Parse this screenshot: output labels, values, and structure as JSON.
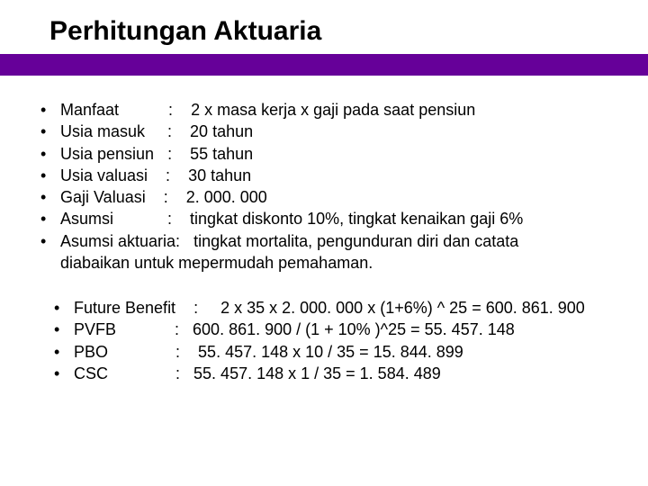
{
  "colors": {
    "bar": "#660099",
    "background": "#ffffff",
    "text": "#000000"
  },
  "title": "Perhitungan Aktuaria",
  "list1": {
    "items": [
      {
        "label": "Manfaat           :    ",
        "value": "2 x masa kerja x gaji pada saat pensiun"
      },
      {
        "label": "Usia masuk     :    ",
        "value": "20 tahun"
      },
      {
        "label": "Usia pensiun   :    ",
        "value": "55 tahun"
      },
      {
        "label": "Usia valuasi    :    ",
        "value": "30 tahun"
      },
      {
        "label": "Gaji Valuasi    :    ",
        "value": "2. 000. 000"
      },
      {
        "label": "Asumsi            :    ",
        "value": "tingkat diskonto 10%, tingkat kenaikan gaji 6%"
      },
      {
        "label": "Asumsi aktuaria:   ",
        "value": "tingkat mortalita, pengunduran diri dan catata"
      }
    ],
    "wrap": "diabaikan untuk mepermudah pemahaman."
  },
  "list2": {
    "items": [
      {
        "label": "Future Benefit    :     ",
        "value": "2 x 35 x 2. 000. 000 x (1+6%) ^ 25 = 600. 861. 900"
      },
      {
        "label": "PVFB             :   ",
        "value": "600. 861. 900 / (1 + 10% )^25 = 55. 457. 148"
      },
      {
        "label": "PBO               :    ",
        "value": "55. 457. 148 x 10 / 35 = 15. 844. 899"
      },
      {
        "label": "CSC               :   ",
        "value": "55. 457. 148 x 1 / 35 = 1. 584. 489"
      }
    ]
  }
}
